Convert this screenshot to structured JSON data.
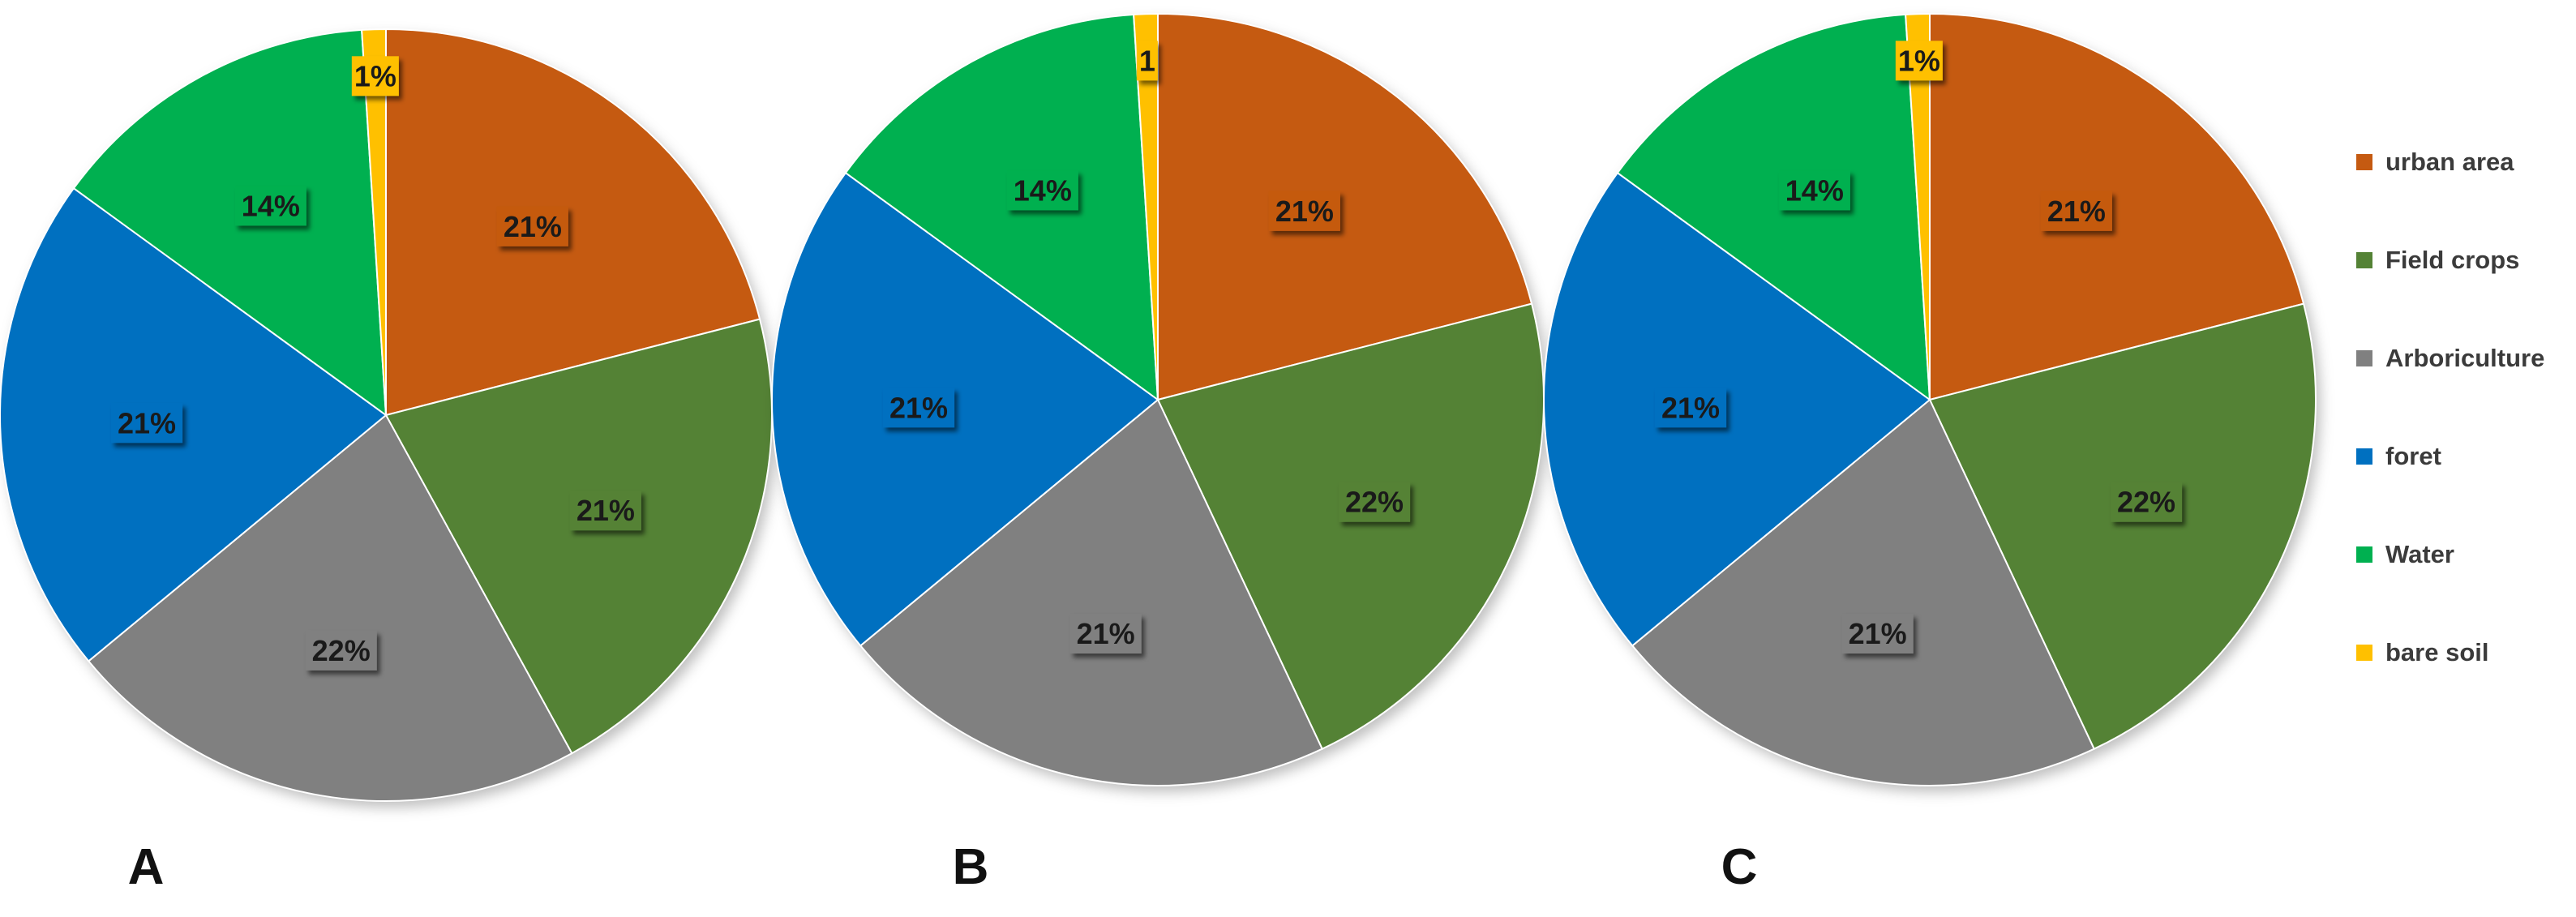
{
  "legend": {
    "entries": [
      {
        "label": "urban area",
        "color": "#C55A11"
      },
      {
        "label": "Field crops",
        "color": "#548235"
      },
      {
        "label": "Arboriculture",
        "color": "#808080"
      },
      {
        "label": "foret",
        "color": "#0070C0"
      },
      {
        "label": "Water",
        "color": "#00B050"
      },
      {
        "label": "bare soil",
        "color": "#FFC000"
      }
    ]
  },
  "chart_data": [
    {
      "type": "pie",
      "panel_label": "A",
      "categories": [
        "urban area",
        "Field crops",
        "Arboriculture",
        "foret",
        "Water",
        "bare soil"
      ],
      "values": [
        21,
        21,
        22,
        21,
        14,
        1
      ],
      "labels": [
        "21%",
        "21%",
        "22%",
        "21%",
        "14%",
        "1%"
      ]
    },
    {
      "type": "pie",
      "panel_label": "B",
      "categories": [
        "urban area",
        "Field crops",
        "Arboriculture",
        "foret",
        "Water",
        "bare soil"
      ],
      "values": [
        21,
        22,
        21,
        21,
        14,
        1
      ],
      "labels": [
        "21%",
        "22%",
        "21%",
        "21%",
        "14%",
        "1"
      ]
    },
    {
      "type": "pie",
      "panel_label": "C",
      "categories": [
        "urban area",
        "Field crops",
        "Arboriculture",
        "foret",
        "Water",
        "bare soil"
      ],
      "values": [
        21,
        22,
        21,
        21,
        14,
        1
      ],
      "labels": [
        "21%",
        "22%",
        "21%",
        "21%",
        "14%",
        "1%"
      ]
    }
  ]
}
